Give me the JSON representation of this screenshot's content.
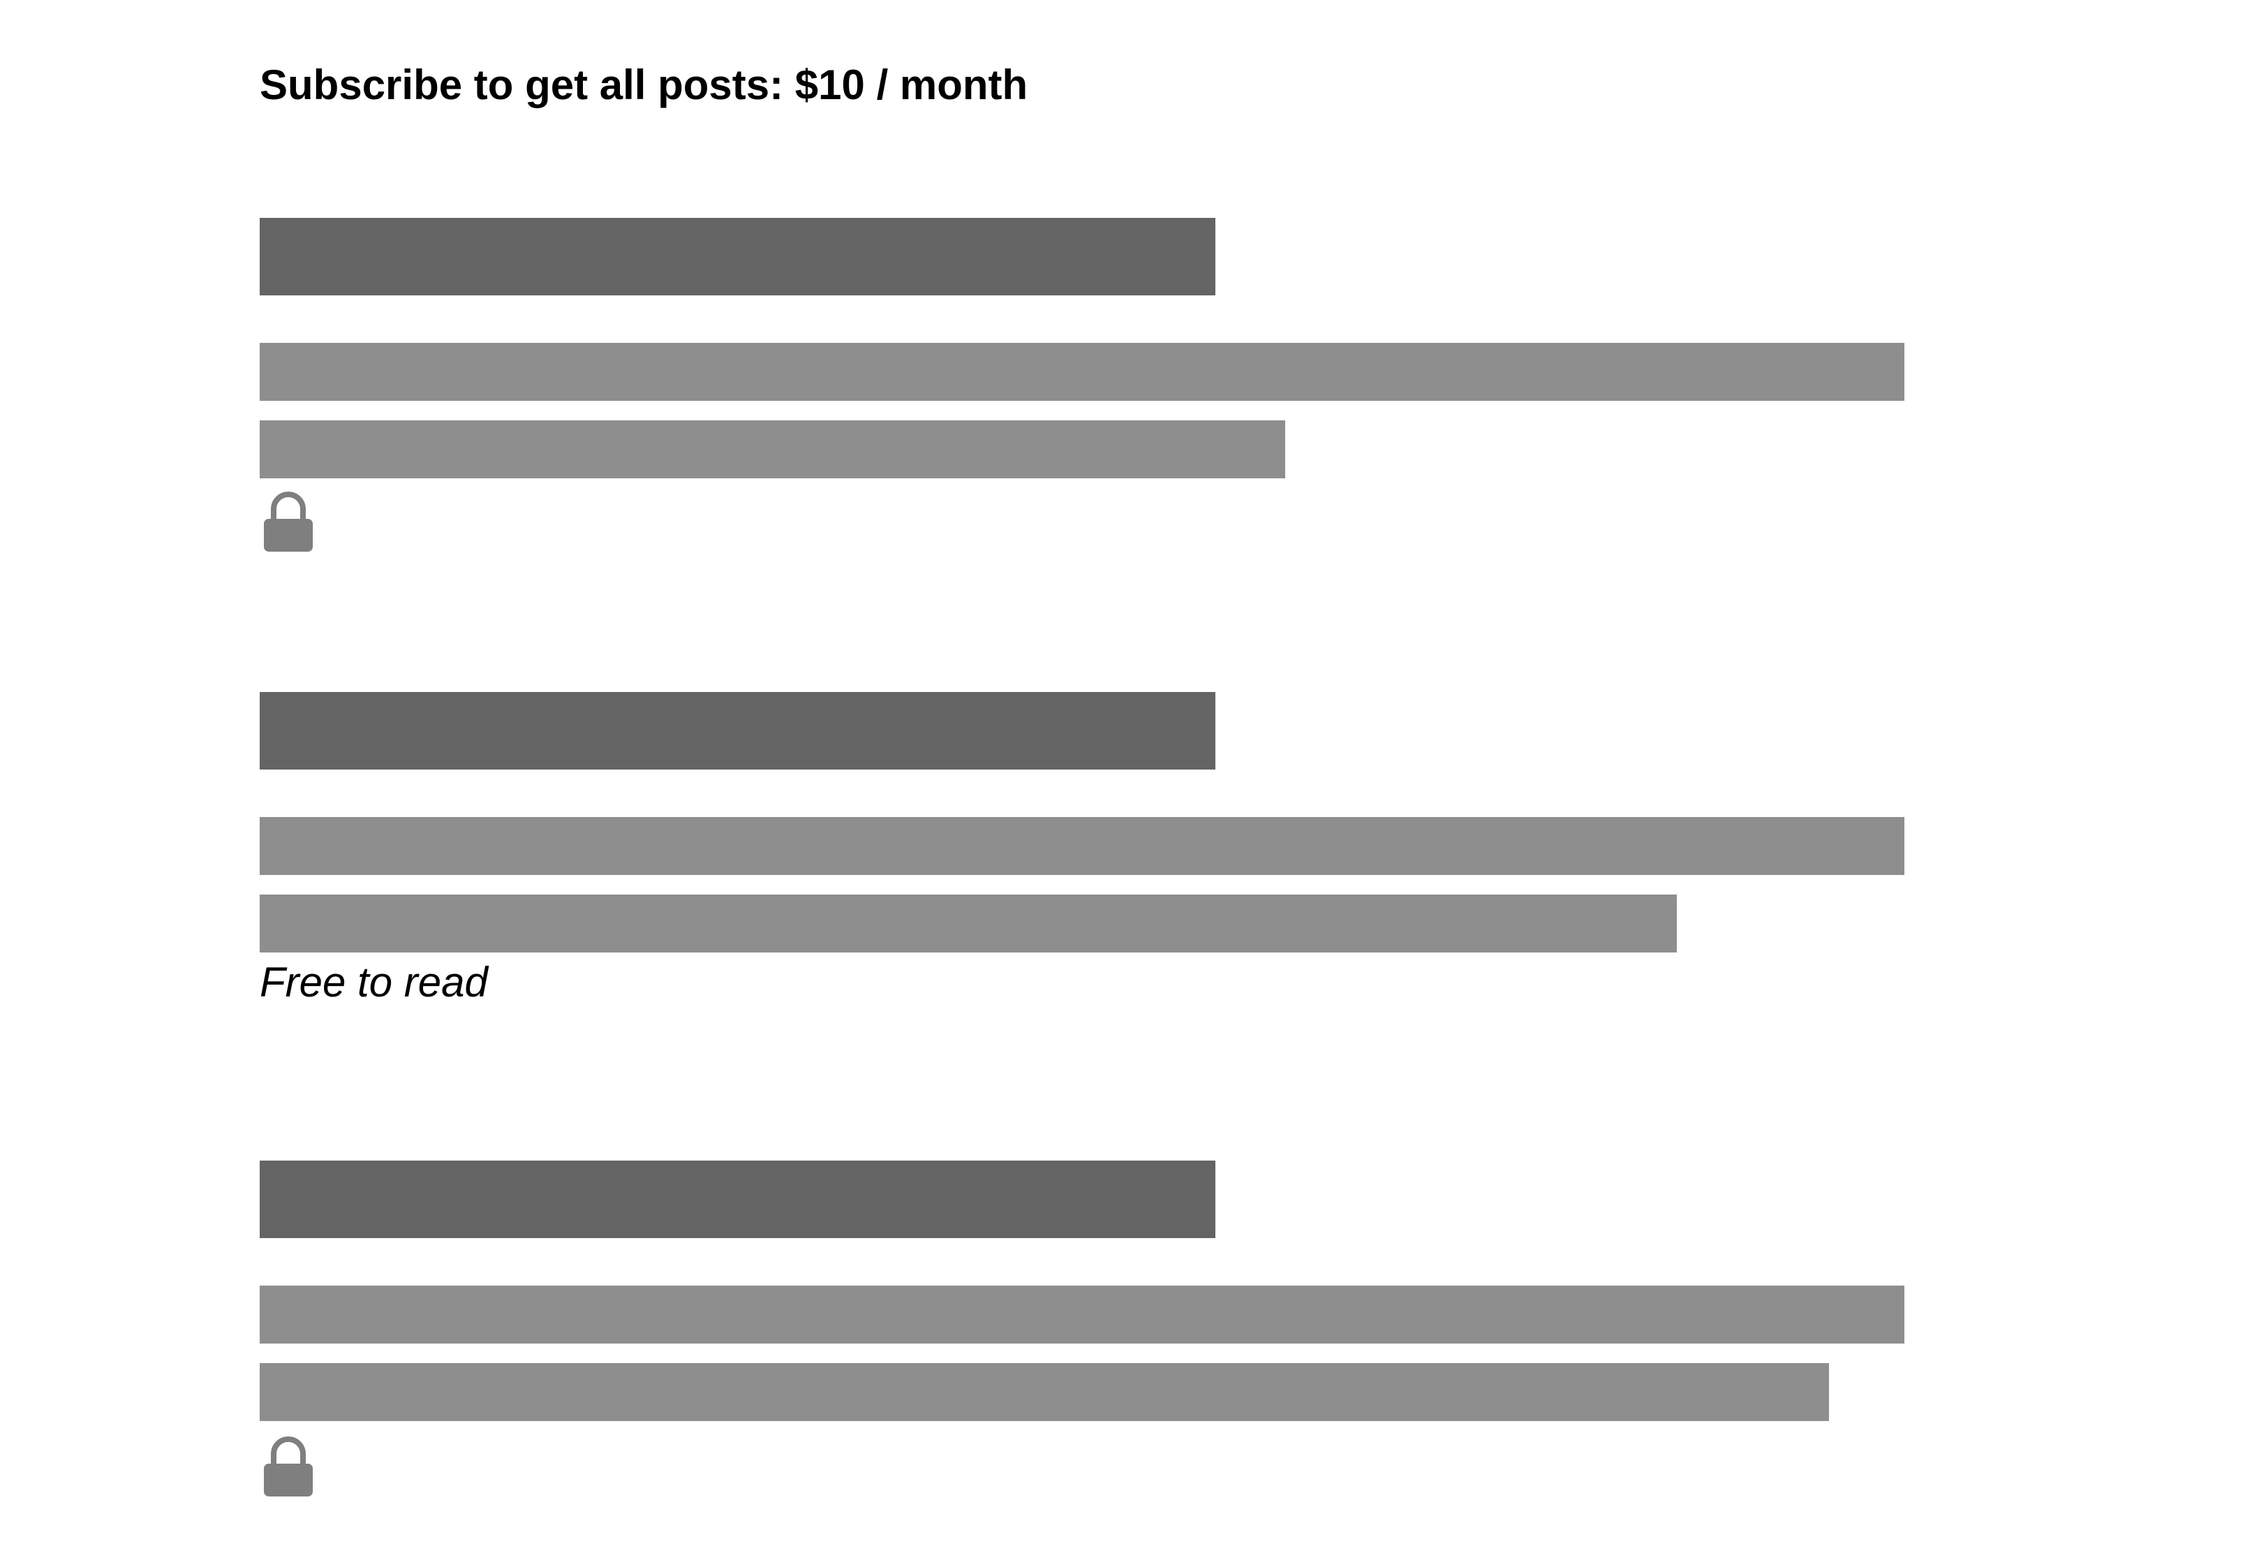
{
  "header": {
    "subscribe_text": "Subscribe to get all posts: $10 / month"
  },
  "colors": {
    "title_bar": "#646464",
    "text_bar": "#8e8e8e",
    "lock": "#7f7f7f"
  },
  "posts": [
    {
      "access": "locked",
      "icon": "lock-icon"
    },
    {
      "access": "free",
      "label": "Free to read"
    },
    {
      "access": "locked",
      "icon": "lock-icon"
    }
  ]
}
